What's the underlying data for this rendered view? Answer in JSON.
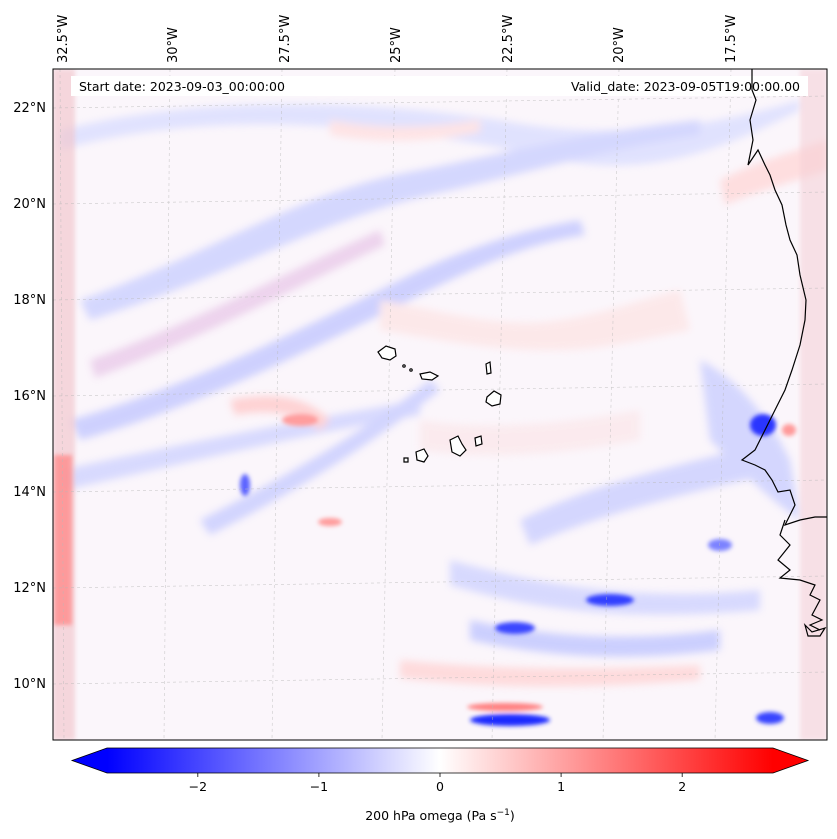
{
  "map": {
    "start_date": "Start date: 2023-09-03_00:00:00",
    "valid_date": "Valid_date: 2023-09-05T19:00:00.00",
    "lon_labels": [
      "32.5°W",
      "30°W",
      "27.5°W",
      "25°W",
      "22.5°W",
      "20°W",
      "17.5°W"
    ],
    "lat_labels": [
      "22°N",
      "20°N",
      "18°N",
      "16°N",
      "14°N",
      "12°N",
      "10°N"
    ],
    "field": "200 hPa omega",
    "colors": {
      "negative": "#0000ff",
      "neutral": "#ffffff",
      "positive": "#ff0000",
      "coast": "#000000"
    }
  },
  "colorbar": {
    "min": -2.75,
    "max": 2.75,
    "ticks": [
      -2,
      -1,
      0,
      1,
      2
    ],
    "tick_labels": [
      "−2",
      "−1",
      "0",
      "1",
      "2"
    ],
    "label_main": "200 hPa omega (Pa s",
    "label_sup": "−1",
    "label_close": ")",
    "extend": "both",
    "colormap": "bwr"
  }
}
